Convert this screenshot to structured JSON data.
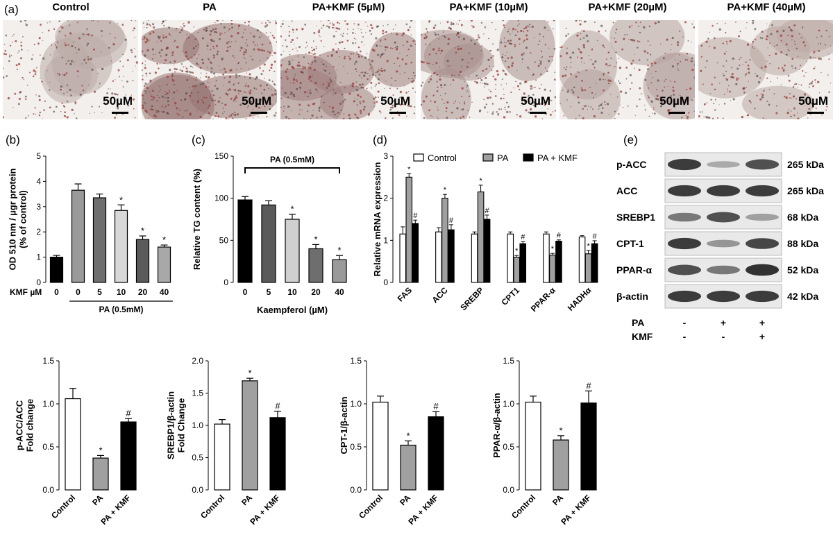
{
  "panels": {
    "a": "(a)",
    "b": "(b)",
    "c": "(c)",
    "d": "(d)",
    "e": "(e)"
  },
  "micrographs": [
    {
      "title": "Control",
      "scale": "50µM",
      "stain": 0.2
    },
    {
      "title": "PA",
      "scale": "50µM",
      "stain": 0.85
    },
    {
      "title": "PA+KMF (5µM)",
      "scale": "50µM",
      "stain": 0.7
    },
    {
      "title": "PA+KMF (10µM)",
      "scale": "50µM",
      "stain": 0.5
    },
    {
      "title": "PA+KMF (20µM)",
      "scale": "50µM",
      "stain": 0.3
    },
    {
      "title": "PA+KMF (40µM)",
      "scale": "50µM",
      "stain": 0.25
    }
  ],
  "western": {
    "rows": [
      {
        "label": "p-ACC",
        "kda": "265 kDa",
        "intensity": [
          0.85,
          0.3,
          0.75
        ]
      },
      {
        "label": "ACC",
        "kda": "265 kDa",
        "intensity": [
          0.85,
          0.85,
          0.85
        ]
      },
      {
        "label": "SREBP1",
        "kda": "68 kDa",
        "intensity": [
          0.55,
          0.75,
          0.35
        ]
      },
      {
        "label": "CPT-1",
        "kda": "88 kDa",
        "intensity": [
          0.85,
          0.4,
          0.8
        ]
      },
      {
        "label": "PPAR-α",
        "kda": "52 kDa",
        "intensity": [
          0.75,
          0.55,
          0.9
        ]
      },
      {
        "label": "β-actin",
        "kda": "42 kDa",
        "intensity": [
          0.85,
          0.85,
          0.85
        ]
      }
    ],
    "conditions": [
      {
        "label": "PA",
        "values": [
          "-",
          "+",
          "+"
        ]
      },
      {
        "label": "KMF",
        "values": [
          "-",
          "-",
          "+"
        ]
      }
    ]
  },
  "chart_data": [
    {
      "id": "b",
      "type": "bar",
      "ylabel": "OD 510 nm / µgr protein\n(% of control)",
      "ylim": [
        0,
        5
      ],
      "yticks": [
        0,
        1,
        2,
        3,
        4,
        5
      ],
      "xlabel_prefix": "KMF µM",
      "categories": [
        "0",
        "0",
        "5",
        "10",
        "20",
        "40"
      ],
      "values": [
        1.0,
        3.65,
        3.35,
        2.85,
        1.7,
        1.4
      ],
      "errors": [
        0.07,
        0.25,
        0.15,
        0.22,
        0.14,
        0.08
      ],
      "colors": [
        "#000000",
        "#9a9a9a",
        "#6e6e6e",
        "#d8d8d8",
        "#5a5a5a",
        "#a8a8a8"
      ],
      "marks": [
        "",
        "",
        "",
        "*",
        "*",
        "*"
      ],
      "bracket": "PA (0.5mM)"
    },
    {
      "id": "c",
      "type": "bar",
      "ylabel": "Relative TG content (%)",
      "xlabel": "Kaempferol (µM)",
      "ylim": [
        0,
        150
      ],
      "yticks": [
        0,
        50,
        100,
        150
      ],
      "categories": [
        "0",
        "5",
        "10",
        "20",
        "40"
      ],
      "values": [
        98,
        92,
        75,
        40,
        27
      ],
      "errors": [
        4,
        5,
        6,
        5,
        5
      ],
      "colors": [
        "#000000",
        "#5a5a5a",
        "#d0d0d0",
        "#6e6e6e",
        "#9a9a9a"
      ],
      "marks": [
        "",
        "",
        "*",
        "*",
        "*"
      ],
      "bracket": "PA (0.5mM)"
    },
    {
      "id": "d",
      "type": "bar",
      "ylabel": "Relative mRNA expression",
      "ylim": [
        0,
        3
      ],
      "yticks": [
        0,
        1,
        2,
        3
      ],
      "categories": [
        "FAS",
        "ACC",
        "SREBP",
        "CPT1",
        "PPAR-α",
        "HADHα"
      ],
      "series": [
        {
          "name": "Control",
          "values": [
            1.15,
            1.2,
            1.15,
            1.15,
            1.15,
            1.08
          ],
          "errors": [
            0.17,
            0.1,
            0.05,
            0.05,
            0.05,
            0.03
          ],
          "color": "#ffffff",
          "marks": [
            "",
            "",
            "",
            "",
            "",
            ""
          ]
        },
        {
          "name": "PA",
          "values": [
            2.5,
            2.0,
            2.15,
            0.6,
            0.65,
            0.68
          ],
          "errors": [
            0.08,
            0.09,
            0.16,
            0.04,
            0.04,
            0.08
          ],
          "color": "#a0a0a0",
          "marks": [
            "*",
            "*",
            "*",
            "*",
            "*",
            "*"
          ]
        },
        {
          "name": "PA + KMF",
          "values": [
            1.4,
            1.25,
            1.5,
            0.92,
            0.98,
            0.92
          ],
          "errors": [
            0.08,
            0.12,
            0.1,
            0.05,
            0.03,
            0.07
          ],
          "color": "#000000",
          "marks": [
            "#",
            "#",
            "#",
            "#",
            "#",
            "#"
          ]
        }
      ]
    },
    {
      "id": "f1",
      "type": "bar",
      "ylabel": "p-ACC/ACC\nFold change",
      "ylim": [
        0,
        1.5
      ],
      "yticks": [
        "0.0",
        "0.5",
        "1.0",
        "1.5"
      ],
      "categories": [
        "Control",
        "PA",
        "PA + KMF"
      ],
      "values": [
        1.06,
        0.37,
        0.79
      ],
      "errors": [
        0.12,
        0.03,
        0.04
      ],
      "colors": [
        "#ffffff",
        "#a0a0a0",
        "#000000"
      ],
      "marks": [
        "",
        "*",
        "#"
      ]
    },
    {
      "id": "f2",
      "type": "bar",
      "ylabel": "SREBP1/β-actin\nFold Change",
      "ylim": [
        0,
        2.0
      ],
      "yticks": [
        "0.0",
        "0.5",
        "1.0",
        "1.5",
        "2.0"
      ],
      "categories": [
        "Control",
        "PA",
        "PA + KMF"
      ],
      "values": [
        1.02,
        1.69,
        1.12
      ],
      "errors": [
        0.07,
        0.04,
        0.1
      ],
      "colors": [
        "#ffffff",
        "#a0a0a0",
        "#000000"
      ],
      "marks": [
        "",
        "*",
        "#"
      ]
    },
    {
      "id": "f3",
      "type": "bar",
      "ylabel": "CPT-1/β-actin",
      "ylim": [
        0,
        1.5
      ],
      "yticks": [
        "0.0",
        "0.5",
        "1.0",
        "1.5"
      ],
      "categories": [
        "Control",
        "PA",
        "PA + KMF"
      ],
      "values": [
        1.02,
        0.52,
        0.85
      ],
      "errors": [
        0.07,
        0.05,
        0.06
      ],
      "colors": [
        "#ffffff",
        "#a0a0a0",
        "#000000"
      ],
      "marks": [
        "",
        "*",
        "#"
      ]
    },
    {
      "id": "f4",
      "type": "bar",
      "ylabel": "PPAR-α/β-actin",
      "ylim": [
        0,
        1.5
      ],
      "yticks": [
        "0.0",
        "0.5",
        "1.0",
        "1.5"
      ],
      "categories": [
        "Control",
        "PA",
        "PA + KMF"
      ],
      "values": [
        1.02,
        0.58,
        1.01
      ],
      "errors": [
        0.07,
        0.05,
        0.14
      ],
      "colors": [
        "#ffffff",
        "#a0a0a0",
        "#000000"
      ],
      "marks": [
        "",
        "*",
        "#"
      ]
    }
  ]
}
